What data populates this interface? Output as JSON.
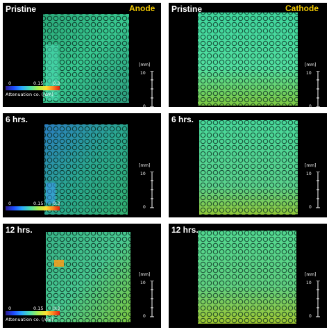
{
  "panels": [
    {
      "condition": "Pristine",
      "electrode": "Anode"
    },
    {
      "condition": "Pristine",
      "electrode": "Cathode"
    },
    {
      "condition": "6 hrs.",
      "electrode": ""
    },
    {
      "condition": "6 hrs.",
      "electrode": ""
    },
    {
      "condition": "12 hrs.",
      "electrode": ""
    },
    {
      "condition": "12 hrs.",
      "electrode": ""
    }
  ],
  "scale_bar": {
    "unit": "[mm]",
    "max": "10",
    "min": "0"
  },
  "colorbar": {
    "ticks": [
      "0",
      "0.15",
      "0.3"
    ],
    "label": "Attenuation co. (/cm)"
  }
}
